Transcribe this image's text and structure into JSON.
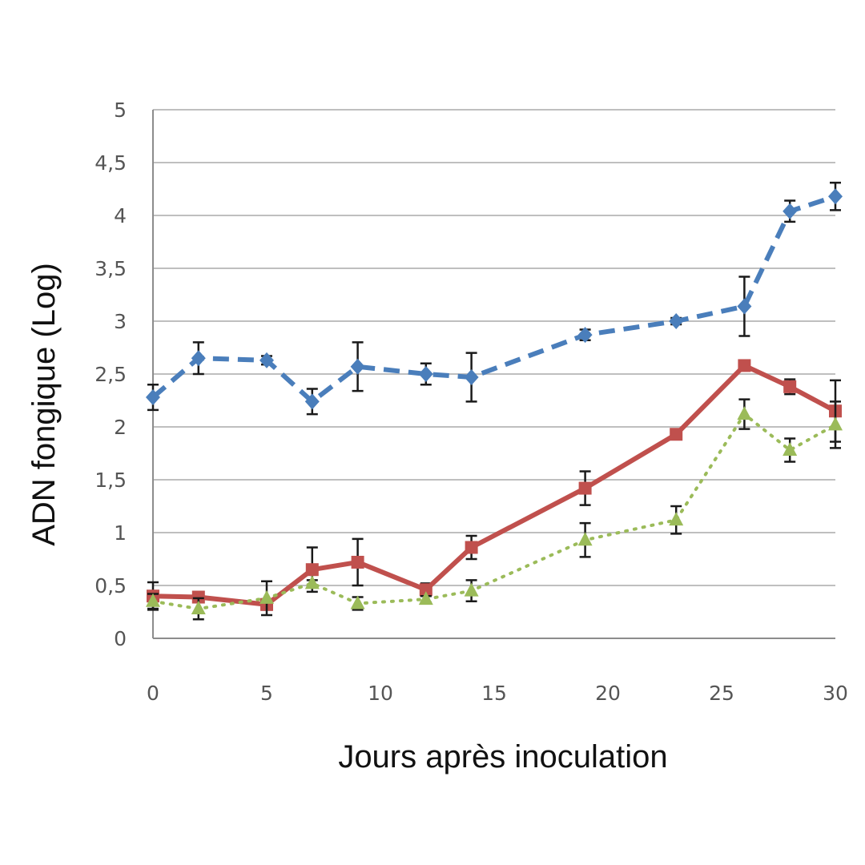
{
  "chart_data": {
    "type": "line",
    "xlabel": "Jours après inoculation",
    "ylabel": "ADN fongique (Log)",
    "xlim": [
      0,
      30
    ],
    "ylim": [
      0,
      5
    ],
    "x_ticks": [
      {
        "v": 0,
        "label": "0"
      },
      {
        "v": 5,
        "label": "5"
      },
      {
        "v": 10,
        "label": "10"
      },
      {
        "v": 15,
        "label": "15"
      },
      {
        "v": 20,
        "label": "20"
      },
      {
        "v": 25,
        "label": "25"
      },
      {
        "v": 30,
        "label": "30"
      }
    ],
    "y_ticks": [
      {
        "v": 0,
        "label": "0"
      },
      {
        "v": 0.5,
        "label": "0,5"
      },
      {
        "v": 1,
        "label": "1"
      },
      {
        "v": 1.5,
        "label": "1,5"
      },
      {
        "v": 2,
        "label": "2"
      },
      {
        "v": 2.5,
        "label": "2,5"
      },
      {
        "v": 3,
        "label": "3"
      },
      {
        "v": 3.5,
        "label": "3,5"
      },
      {
        "v": 4,
        "label": "4"
      },
      {
        "v": 4.5,
        "label": "4,5"
      },
      {
        "v": 5,
        "label": "5"
      }
    ],
    "grid": "horizontal",
    "legend": "none",
    "series": [
      {
        "key": "blue",
        "color": "#4a7ebb",
        "line_style": "dashed",
        "marker": "diamond",
        "points": [
          {
            "x": 0,
            "y": 2.28,
            "err": 0.12
          },
          {
            "x": 2,
            "y": 2.65,
            "err": 0.15
          },
          {
            "x": 5,
            "y": 2.63,
            "err": 0.04
          },
          {
            "x": 7,
            "y": 2.24,
            "err": 0.12
          },
          {
            "x": 9,
            "y": 2.57,
            "err": 0.23
          },
          {
            "x": 12,
            "y": 2.5,
            "err": 0.1
          },
          {
            "x": 14,
            "y": 2.47,
            "err": 0.23
          },
          {
            "x": 19,
            "y": 2.87,
            "err": 0.05
          },
          {
            "x": 23,
            "y": 3.0,
            "err": 0.03
          },
          {
            "x": 26,
            "y": 3.14,
            "err": 0.28
          },
          {
            "x": 28,
            "y": 4.04,
            "err": 0.1
          },
          {
            "x": 30,
            "y": 4.18,
            "err": 0.13
          }
        ]
      },
      {
        "key": "red",
        "color": "#c0504d",
        "line_style": "solid",
        "marker": "square",
        "points": [
          {
            "x": 0,
            "y": 0.4,
            "err": 0.13
          },
          {
            "x": 2,
            "y": 0.39,
            "err": 0.05
          },
          {
            "x": 5,
            "y": 0.32,
            "err": 0.05
          },
          {
            "x": 7,
            "y": 0.65,
            "err": 0.21
          },
          {
            "x": 9,
            "y": 0.72,
            "err": 0.22
          },
          {
            "x": 12,
            "y": 0.46,
            "err": 0.06
          },
          {
            "x": 14,
            "y": 0.86,
            "err": 0.11
          },
          {
            "x": 19,
            "y": 1.42,
            "err": 0.16
          },
          {
            "x": 23,
            "y": 1.93,
            "err": 0.03
          },
          {
            "x": 26,
            "y": 2.58,
            "err": 0.03
          },
          {
            "x": 28,
            "y": 2.38,
            "err": 0.07
          },
          {
            "x": 30,
            "y": 2.15,
            "err": 0.29
          }
        ]
      },
      {
        "key": "green",
        "color": "#9bbb59",
        "line_style": "dotted",
        "marker": "triangle",
        "points": [
          {
            "x": 0,
            "y": 0.35,
            "err": 0.07
          },
          {
            "x": 2,
            "y": 0.28,
            "err": 0.1
          },
          {
            "x": 5,
            "y": 0.38,
            "err": 0.16
          },
          {
            "x": 7,
            "y": 0.52,
            "err": 0.03
          },
          {
            "x": 9,
            "y": 0.33,
            "err": 0.06
          },
          {
            "x": 12,
            "y": 0.37,
            "err": 0.03
          },
          {
            "x": 14,
            "y": 0.45,
            "err": 0.1
          },
          {
            "x": 19,
            "y": 0.93,
            "err": 0.16
          },
          {
            "x": 23,
            "y": 1.12,
            "err": 0.13
          },
          {
            "x": 26,
            "y": 2.12,
            "err": 0.14
          },
          {
            "x": 28,
            "y": 1.78,
            "err": 0.11
          },
          {
            "x": 30,
            "y": 2.02,
            "err": 0.22
          }
        ]
      }
    ]
  }
}
